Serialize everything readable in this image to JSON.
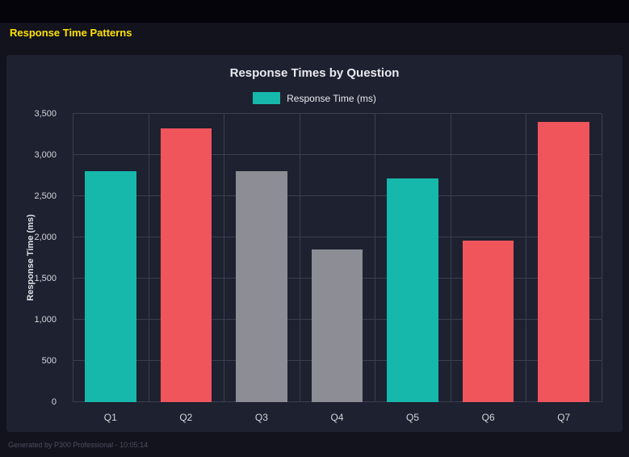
{
  "heading": "Response Time Patterns",
  "footer": "Generated by P300 Professional - 10:05:14",
  "chart_data": {
    "type": "bar",
    "title": "Response Times by Question",
    "legend": {
      "label": "Response Time (ms)",
      "color": "#16b8ac",
      "position": "top"
    },
    "categories": [
      "Q1",
      "Q2",
      "Q3",
      "Q4",
      "Q5",
      "Q6",
      "Q7"
    ],
    "values": [
      2800,
      3320,
      2800,
      1850,
      2720,
      1960,
      3400
    ],
    "bar_colors": [
      "#16b8ac",
      "#f0555c",
      "#8d8d95",
      "#8d8d95",
      "#16b8ac",
      "#f0555c",
      "#f0555c"
    ],
    "xlabel": "",
    "ylabel": "Response Time (ms)",
    "ylim": [
      0,
      3500
    ],
    "yticks": [
      0,
      500,
      1000,
      1500,
      2000,
      2500,
      3000,
      3500
    ],
    "ytick_labels": [
      "0",
      "500",
      "1,000",
      "1,500",
      "2,000",
      "2,500",
      "3,000",
      "3,500"
    ],
    "grid": true,
    "legend_position": "top"
  },
  "colors": {
    "heading": "#ffe100",
    "page_bg": "#12131d",
    "panel_bg": "#1e2130",
    "grid": "#3a3f4f",
    "footer_text": "#4b505f"
  }
}
